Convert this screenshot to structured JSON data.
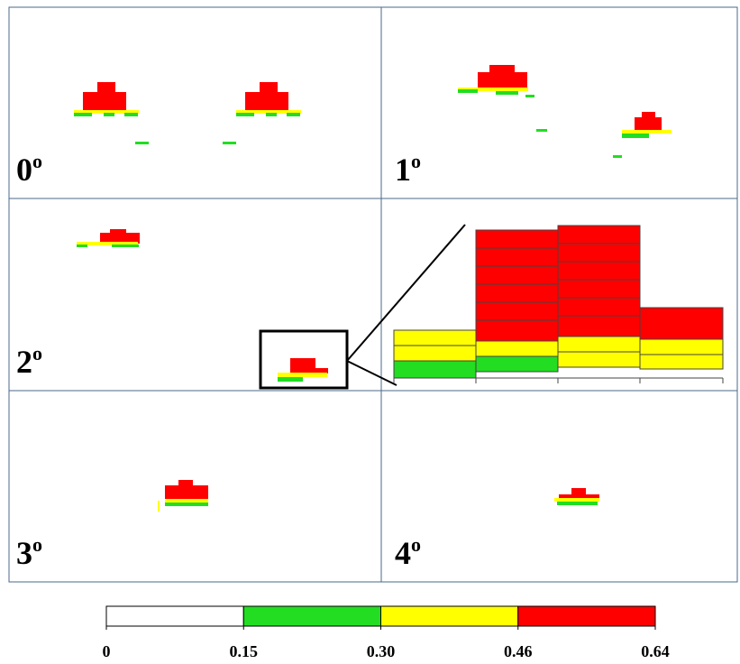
{
  "panels": [
    {
      "label": "0",
      "sup": "o"
    },
    {
      "label": "1",
      "sup": "o"
    },
    {
      "label": "2",
      "sup": "o"
    },
    {
      "label": "3",
      "sup": "o"
    },
    {
      "label": "4",
      "sup": "o"
    }
  ],
  "colorbar": {
    "ticks": [
      0,
      0.15,
      {
        "value": 0.3,
        "label": "0.30"
      },
      0.46,
      0.64
    ],
    "colors": [
      "#ffffff",
      "#22dd22",
      "#ffff00",
      "#ff0000"
    ]
  }
}
